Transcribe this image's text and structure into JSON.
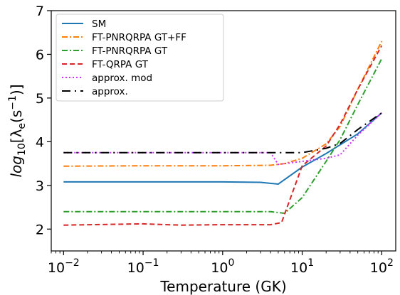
{
  "chart_data": {
    "type": "line",
    "xlabel": "Temperature (GK)",
    "ylabel_parts": {
      "lead": "log",
      "sub": "10",
      "mid": "[λ",
      "sub2": "e",
      "open": "(s",
      "sup": "−1",
      "close": ")]"
    },
    "xscale": "log",
    "xlim": [
      0.007,
      150
    ],
    "ylim": [
      1.5,
      7
    ],
    "x_ticks": [
      0.01,
      0.1,
      1,
      10,
      100
    ],
    "x_tick_labels": [
      {
        "base": "10",
        "exp": "−2"
      },
      {
        "base": "10",
        "exp": "−1"
      },
      {
        "base": "10",
        "exp": "0"
      },
      {
        "base": "10",
        "exp": "1"
      },
      {
        "base": "10",
        "exp": "2"
      }
    ],
    "y_ticks": [
      2,
      3,
      4,
      5,
      6,
      7
    ],
    "y_tick_labels": [
      "2",
      "3",
      "4",
      "5",
      "6",
      "7"
    ],
    "legend_position": "top-left",
    "grid": false,
    "series": [
      {
        "name": "SM",
        "color": "#1f77b4",
        "dash": "solid",
        "x": [
          0.01,
          0.1,
          1,
          3,
          5,
          10,
          20,
          30,
          50,
          100
        ],
        "y": [
          3.08,
          3.08,
          3.08,
          3.07,
          3.03,
          3.42,
          3.73,
          3.93,
          4.18,
          4.66
        ]
      },
      {
        "name": "FT-PNRQRPA GT+FF",
        "color": "#ff7f0e",
        "dash": "dashdot",
        "x": [
          0.01,
          0.1,
          1,
          4,
          6,
          10,
          20,
          30,
          50,
          100
        ],
        "y": [
          3.44,
          3.45,
          3.45,
          3.46,
          3.5,
          3.62,
          3.95,
          4.35,
          5.2,
          6.3
        ]
      },
      {
        "name": "FT-PNRQRPA GT",
        "color": "#2ca02c",
        "dash": "dashdot",
        "x": [
          0.01,
          0.1,
          1,
          4,
          6,
          10,
          20,
          30,
          50,
          100
        ],
        "y": [
          2.4,
          2.4,
          2.4,
          2.4,
          2.36,
          2.72,
          3.55,
          4.05,
          4.85,
          5.9
        ]
      },
      {
        "name": "FT-QRPA GT",
        "color": "#d62728",
        "dash": "dashed",
        "x": [
          0.01,
          0.1,
          0.3,
          1,
          4,
          5.5,
          10,
          20,
          30,
          50,
          100
        ],
        "y": [
          2.09,
          2.12,
          2.09,
          2.1,
          2.1,
          2.15,
          3.45,
          3.9,
          4.4,
          5.2,
          6.2
        ]
      },
      {
        "name": "approx. mod",
        "color": "#cc33ff",
        "dash": "dotted",
        "x": [
          0.01,
          0.1,
          1,
          4,
          5,
          10,
          20,
          30,
          50,
          100
        ],
        "y": [
          3.75,
          3.75,
          3.75,
          3.75,
          3.48,
          3.55,
          3.62,
          3.7,
          4.15,
          4.66
        ]
      },
      {
        "name": "approx.",
        "color": "#000000",
        "dash": "longdash",
        "x": [
          0.01,
          0.1,
          1,
          10,
          20,
          30,
          50,
          100
        ],
        "y": [
          3.75,
          3.75,
          3.75,
          3.75,
          3.85,
          3.96,
          4.28,
          4.66
        ]
      }
    ]
  }
}
